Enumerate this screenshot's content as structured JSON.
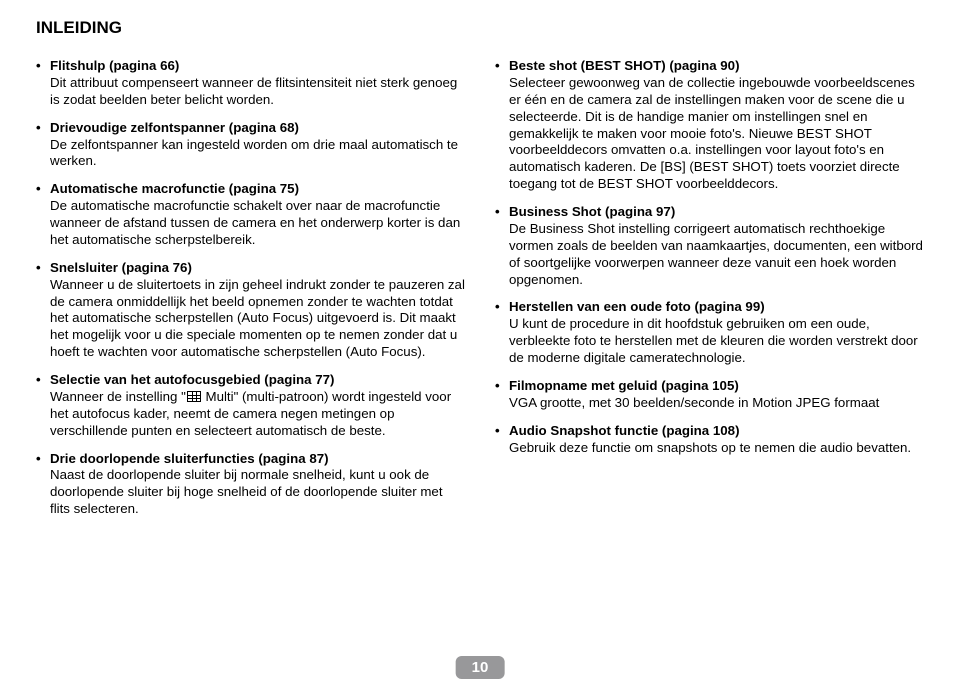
{
  "header": "INLEIDING",
  "pageNumber": "10",
  "left": [
    {
      "title": "Flitshulp (pagina 66)",
      "body": "Dit attribuut compenseert wanneer de flitsintensiteit niet sterk genoeg is zodat beelden beter belicht worden."
    },
    {
      "title": "Drievoudige zelfontspanner (pagina 68)",
      "body": "De zelfontspanner kan ingesteld worden om drie maal automatisch te werken."
    },
    {
      "title": "Automatische macrofunctie (pagina 75)",
      "body": "De automatische macrofunctie schakelt over naar de macrofunctie wanneer de afstand tussen de camera en het onderwerp korter is dan het automatische scherpstelbereik."
    },
    {
      "title": "Snelsluiter (pagina 76)",
      "body": "Wanneer u de sluitertoets in zijn geheel indrukt zonder te pauzeren zal de camera onmiddellijk het beeld opnemen zonder te wachten totdat het automatische scherpstellen (Auto Focus) uitgevoerd is. Dit maakt het mogelijk voor u die speciale momenten op te nemen zonder dat u hoeft te wachten voor automatische scherpstellen (Auto Focus)."
    },
    {
      "title": "Selectie van het autofocusgebied (pagina 77)",
      "body_pre": "Wanneer de instelling \"",
      "body_post": " Multi\" (multi-patroon) wordt ingesteld voor het autofocus kader, neemt de camera negen metingen op verschillende punten en selecteert automatisch de beste.",
      "hasIcon": true
    },
    {
      "title": "Drie doorlopende sluiterfuncties (pagina 87)",
      "body": "Naast de doorlopende sluiter bij normale snelheid, kunt u ook de doorlopende sluiter bij hoge snelheid of de doorlopende sluiter met flits selecteren."
    }
  ],
  "right": [
    {
      "title": "Beste shot (BEST SHOT) (pagina 90)",
      "body": "Selecteer gewoonweg van de collectie ingebouwde voorbeeldscenes er één en de camera zal de instellingen maken voor de scene die u selecteerde. Dit is de handige manier om instellingen snel en gemakkelijk te maken voor mooie foto's. Nieuwe BEST SHOT voorbeelddecors omvatten o.a. instellingen voor layout foto's en automatisch kaderen. De [BS] (BEST SHOT) toets voorziet directe toegang tot de BEST SHOT voorbeelddecors."
    },
    {
      "title": "Business Shot (pagina 97)",
      "body": "De Business Shot instelling corrigeert automatisch rechthoekige vormen zoals de beelden van naamkaartjes, documenten, een witbord of soortgelijke voorwerpen wanneer deze vanuit een hoek worden opgenomen."
    },
    {
      "title": "Herstellen van een oude foto (pagina 99)",
      "body": "U kunt de procedure in dit hoofdstuk gebruiken om een oude, verbleekte foto te herstellen met de kleuren die worden verstrekt door de moderne digitale cameratechnologie."
    },
    {
      "title": "Filmopname met geluid (pagina 105)",
      "body": "VGA grootte, met 30 beelden/seconde in Motion JPEG formaat"
    },
    {
      "title": "Audio Snapshot functie (pagina 108)",
      "body": "Gebruik deze functie om snapshots op te nemen die audio bevatten."
    }
  ]
}
